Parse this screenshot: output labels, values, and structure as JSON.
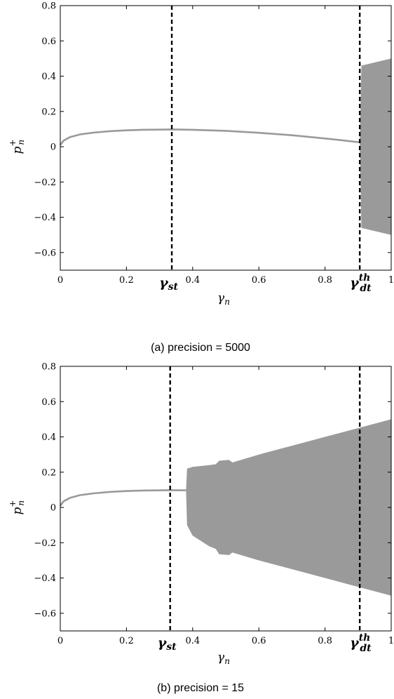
{
  "chart_data": [
    {
      "type": "area",
      "caption": "(a)  precision = 5000",
      "xlabel": "γ",
      "xlabel_sub": "n",
      "ylabel": "p",
      "ylabel_sup": "+",
      "ylabel_sub": "n",
      "xlim": [
        0,
        1
      ],
      "ylim": [
        -0.7,
        0.8
      ],
      "xticks": [
        "0",
        "0.2",
        "0.4",
        "0.6",
        "0.8",
        "1"
      ],
      "yticks": [
        "0.8",
        "0.6",
        "0.4",
        "0.2",
        "0",
        "−0.2",
        "−0.4",
        "−0.6"
      ],
      "grid": false,
      "colors": {
        "curve": "#9a9a9a",
        "band": "#9a9a9a",
        "marker": "#000000"
      },
      "markers": [
        {
          "x": 0.337,
          "label": "γ",
          "sub": "st",
          "sup": ""
        },
        {
          "x": 0.905,
          "label": "γ",
          "sub": "dt",
          "sup": "th"
        }
      ],
      "curve": [
        [
          0,
          0.01
        ],
        [
          0.01,
          0.035
        ],
        [
          0.03,
          0.055
        ],
        [
          0.06,
          0.07
        ],
        [
          0.1,
          0.08
        ],
        [
          0.15,
          0.088
        ],
        [
          0.2,
          0.093
        ],
        [
          0.25,
          0.096
        ],
        [
          0.3,
          0.097
        ],
        [
          0.337,
          0.098
        ],
        [
          0.4,
          0.096
        ],
        [
          0.5,
          0.09
        ],
        [
          0.6,
          0.079
        ],
        [
          0.7,
          0.065
        ],
        [
          0.8,
          0.047
        ],
        [
          0.85,
          0.037
        ],
        [
          0.905,
          0.025
        ]
      ],
      "band_upper": [
        [
          0.905,
          0.025
        ],
        [
          0.91,
          0.46
        ],
        [
          1.0,
          0.5
        ]
      ],
      "band_lower": [
        [
          0.905,
          0.025
        ],
        [
          0.91,
          -0.46
        ],
        [
          1.0,
          -0.5
        ]
      ]
    },
    {
      "type": "area",
      "caption": "(b)  precision = 15",
      "xlabel": "γ",
      "xlabel_sub": "n",
      "ylabel": "p",
      "ylabel_sup": "+",
      "ylabel_sub": "n",
      "xlim": [
        0,
        1
      ],
      "ylim": [
        -0.7,
        0.8
      ],
      "xticks": [
        "0",
        "0.2",
        "0.4",
        "0.6",
        "0.8",
        "1"
      ],
      "yticks": [
        "0.8",
        "0.6",
        "0.4",
        "0.2",
        "0",
        "−0.2",
        "−0.4",
        "−0.6"
      ],
      "grid": false,
      "colors": {
        "curve": "#9a9a9a",
        "band": "#9a9a9a",
        "marker": "#000000"
      },
      "markers": [
        {
          "x": 0.332,
          "label": "γ",
          "sub": "st",
          "sup": ""
        },
        {
          "x": 0.905,
          "label": "γ",
          "sub": "dt",
          "sup": "th"
        }
      ],
      "curve": [
        [
          0,
          0.01
        ],
        [
          0.01,
          0.035
        ],
        [
          0.03,
          0.055
        ],
        [
          0.06,
          0.07
        ],
        [
          0.1,
          0.08
        ],
        [
          0.15,
          0.088
        ],
        [
          0.2,
          0.093
        ],
        [
          0.25,
          0.096
        ],
        [
          0.3,
          0.097
        ],
        [
          0.332,
          0.098
        ],
        [
          0.38,
          0.097
        ]
      ],
      "band_upper": [
        [
          0.38,
          0.097
        ],
        [
          0.383,
          0.22
        ],
        [
          0.4,
          0.23
        ],
        [
          0.45,
          0.24
        ],
        [
          0.47,
          0.245
        ],
        [
          0.48,
          0.265
        ],
        [
          0.51,
          0.27
        ],
        [
          0.52,
          0.255
        ],
        [
          0.6,
          0.3
        ],
        [
          0.7,
          0.35
        ],
        [
          0.8,
          0.4
        ],
        [
          0.9,
          0.45
        ],
        [
          1.0,
          0.5
        ]
      ],
      "band_lower": [
        [
          0.38,
          0.097
        ],
        [
          0.383,
          -0.1
        ],
        [
          0.4,
          -0.16
        ],
        [
          0.45,
          -0.22
        ],
        [
          0.47,
          -0.235
        ],
        [
          0.48,
          -0.265
        ],
        [
          0.51,
          -0.27
        ],
        [
          0.52,
          -0.255
        ],
        [
          0.6,
          -0.3
        ],
        [
          0.7,
          -0.35
        ],
        [
          0.8,
          -0.4
        ],
        [
          0.9,
          -0.45
        ],
        [
          1.0,
          -0.5
        ]
      ]
    }
  ]
}
